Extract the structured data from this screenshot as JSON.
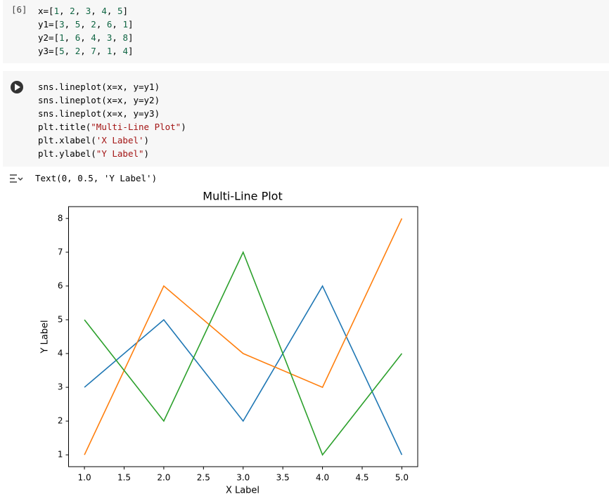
{
  "cells": [
    {
      "execution_count": "[6]",
      "code": [
        "x=[1, 2, 3, 4, 5]",
        "y1=[3, 5, 2, 6, 1]",
        "y2=[1, 6, 4, 3, 8]",
        "y3=[5, 2, 7, 1, 4]"
      ]
    },
    {
      "code": [
        "sns.lineplot(x=x, y=y1)",
        "sns.lineplot(x=x, y=y2)",
        "sns.lineplot(x=x, y=y3)",
        "plt.title(\"Multi-Line Plot\")",
        "plt.xlabel('X Label')",
        "plt.ylabel(\"Y Label\")"
      ],
      "output": "Text(0, 0.5, 'Y Label')"
    }
  ],
  "chart_data": {
    "type": "line",
    "title": "Multi-Line Plot",
    "xlabel": "X Label",
    "ylabel": "Y Label",
    "x": [
      1,
      2,
      3,
      4,
      5
    ],
    "series": [
      {
        "color": "#1f77b4",
        "values": [
          3,
          5,
          2,
          6,
          1
        ]
      },
      {
        "color": "#ff7f0e",
        "values": [
          1,
          6,
          4,
          3,
          8
        ]
      },
      {
        "color": "#2ca02c",
        "values": [
          5,
          2,
          7,
          1,
          4
        ]
      }
    ],
    "xlim": [
      0.8,
      5.2
    ],
    "ylim": [
      0.65,
      8.35
    ],
    "xticks": [
      {
        "value": 1,
        "label": "1.0"
      },
      {
        "value": 1.5,
        "label": "1.5"
      },
      {
        "value": 2,
        "label": "2.0"
      },
      {
        "value": 2.5,
        "label": "2.5"
      },
      {
        "value": 3,
        "label": "3.0"
      },
      {
        "value": 3.5,
        "label": "3.5"
      },
      {
        "value": 4,
        "label": "4.0"
      },
      {
        "value": 4.5,
        "label": "4.5"
      },
      {
        "value": 5,
        "label": "5.0"
      }
    ],
    "yticks": [
      1,
      2,
      3,
      4,
      5,
      6,
      7,
      8
    ],
    "grid": false
  }
}
